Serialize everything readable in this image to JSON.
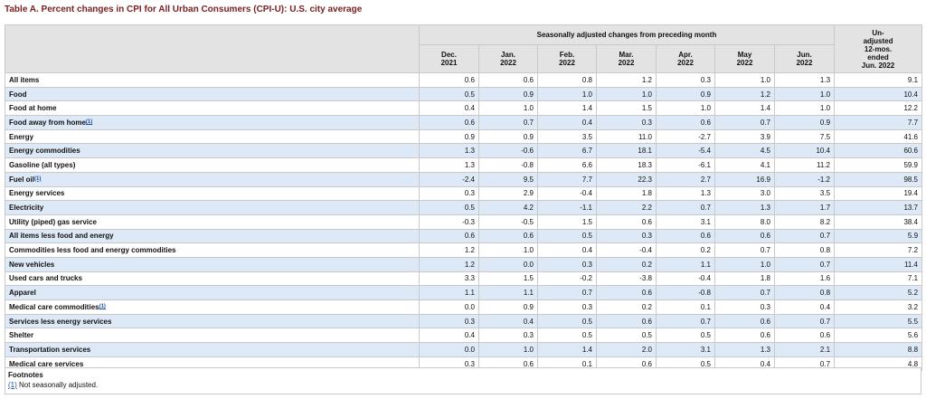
{
  "title": "Table A. Percent changes in CPI for All Urban Consumers (CPI-U): U.S. city average",
  "header": {
    "group_label": "Seasonally adjusted changes from preceding month",
    "months": [
      {
        "m": "Dec.",
        "y": "2021"
      },
      {
        "m": "Jan.",
        "y": "2022"
      },
      {
        "m": "Feb.",
        "y": "2022"
      },
      {
        "m": "Mar.",
        "y": "2022"
      },
      {
        "m": "Apr.",
        "y": "2022"
      },
      {
        "m": "May",
        "y": "2022"
      },
      {
        "m": "Jun.",
        "y": "2022"
      }
    ],
    "unadjusted_lines": [
      "Un-",
      "adjusted",
      "12-mos.",
      "ended",
      "Jun. 2022"
    ]
  },
  "rows": [
    {
      "label": "All items",
      "indent": 0,
      "footnote": "",
      "values": [
        "0.6",
        "0.6",
        "0.8",
        "1.2",
        "0.3",
        "1.0",
        "1.3",
        "9.1"
      ]
    },
    {
      "label": "Food",
      "indent": 1,
      "footnote": "",
      "values": [
        "0.5",
        "0.9",
        "1.0",
        "1.0",
        "0.9",
        "1.2",
        "1.0",
        "10.4"
      ]
    },
    {
      "label": "Food at home",
      "indent": 2,
      "footnote": "",
      "values": [
        "0.4",
        "1.0",
        "1.4",
        "1.5",
        "1.0",
        "1.4",
        "1.0",
        "12.2"
      ]
    },
    {
      "label": "Food away from home",
      "indent": 2,
      "footnote": "(1)",
      "values": [
        "0.6",
        "0.7",
        "0.4",
        "0.3",
        "0.6",
        "0.7",
        "0.9",
        "7.7"
      ]
    },
    {
      "label": "Energy",
      "indent": 1,
      "footnote": "",
      "values": [
        "0.9",
        "0.9",
        "3.5",
        "11.0",
        "-2.7",
        "3.9",
        "7.5",
        "41.6"
      ]
    },
    {
      "label": "Energy commodities",
      "indent": 2,
      "footnote": "",
      "values": [
        "1.3",
        "-0.6",
        "6.7",
        "18.1",
        "-5.4",
        "4.5",
        "10.4",
        "60.6"
      ]
    },
    {
      "label": "Gasoline (all types)",
      "indent": 3,
      "footnote": "",
      "values": [
        "1.3",
        "-0.8",
        "6.6",
        "18.3",
        "-6.1",
        "4.1",
        "11.2",
        "59.9"
      ]
    },
    {
      "label": "Fuel oil",
      "indent": 3,
      "footnote": "(1)",
      "values": [
        "-2.4",
        "9.5",
        "7.7",
        "22.3",
        "2.7",
        "16.9",
        "-1.2",
        "98.5"
      ]
    },
    {
      "label": "Energy services",
      "indent": 2,
      "footnote": "",
      "values": [
        "0.3",
        "2.9",
        "-0.4",
        "1.8",
        "1.3",
        "3.0",
        "3.5",
        "19.4"
      ]
    },
    {
      "label": "Electricity",
      "indent": 3,
      "footnote": "",
      "values": [
        "0.5",
        "4.2",
        "-1.1",
        "2.2",
        "0.7",
        "1.3",
        "1.7",
        "13.7"
      ]
    },
    {
      "label": "Utility (piped) gas service",
      "indent": 3,
      "footnote": "",
      "values": [
        "-0.3",
        "-0.5",
        "1.5",
        "0.6",
        "3.1",
        "8.0",
        "8.2",
        "38.4"
      ]
    },
    {
      "label": "All items less food and energy",
      "indent": 1,
      "footnote": "",
      "values": [
        "0.6",
        "0.6",
        "0.5",
        "0.3",
        "0.6",
        "0.6",
        "0.7",
        "5.9"
      ]
    },
    {
      "label": "Commodities less food and energy commodities",
      "indent": 2,
      "footnote": "",
      "values": [
        "1.2",
        "1.0",
        "0.4",
        "-0.4",
        "0.2",
        "0.7",
        "0.8",
        "7.2"
      ]
    },
    {
      "label": "New vehicles",
      "indent": 3,
      "footnote": "",
      "values": [
        "1.2",
        "0.0",
        "0.3",
        "0.2",
        "1.1",
        "1.0",
        "0.7",
        "11.4"
      ]
    },
    {
      "label": "Used cars and trucks",
      "indent": 3,
      "footnote": "",
      "values": [
        "3.3",
        "1.5",
        "-0.2",
        "-3.8",
        "-0.4",
        "1.8",
        "1.6",
        "7.1"
      ]
    },
    {
      "label": "Apparel",
      "indent": 3,
      "footnote": "",
      "values": [
        "1.1",
        "1.1",
        "0.7",
        "0.6",
        "-0.8",
        "0.7",
        "0.8",
        "5.2"
      ]
    },
    {
      "label": "Medical care commodities",
      "indent": 3,
      "footnote": "(1)",
      "values": [
        "0.0",
        "0.9",
        "0.3",
        "0.2",
        "0.1",
        "0.3",
        "0.4",
        "3.2"
      ]
    },
    {
      "label": "Services less energy services",
      "indent": 2,
      "footnote": "",
      "values": [
        "0.3",
        "0.4",
        "0.5",
        "0.6",
        "0.7",
        "0.6",
        "0.7",
        "5.5"
      ]
    },
    {
      "label": "Shelter",
      "indent": 3,
      "footnote": "",
      "values": [
        "0.4",
        "0.3",
        "0.5",
        "0.5",
        "0.5",
        "0.6",
        "0.6",
        "5.6"
      ]
    },
    {
      "label": "Transportation services",
      "indent": 3,
      "footnote": "",
      "values": [
        "0.0",
        "1.0",
        "1.4",
        "2.0",
        "3.1",
        "1.3",
        "2.1",
        "8.8"
      ]
    },
    {
      "label": "Medical care services",
      "indent": 3,
      "footnote": "",
      "values": [
        "0.3",
        "0.6",
        "0.1",
        "0.6",
        "0.5",
        "0.4",
        "0.7",
        "4.8"
      ]
    }
  ],
  "footnotes": {
    "title": "Footnotes",
    "items": [
      {
        "marker": "(1)",
        "text": " Not seasonally adjusted."
      }
    ]
  },
  "colors": {
    "title": "#7a1f1f",
    "row_alt": "#dde9f7",
    "header_bg": "#e3e3e3",
    "link": "#1a4ba0"
  }
}
